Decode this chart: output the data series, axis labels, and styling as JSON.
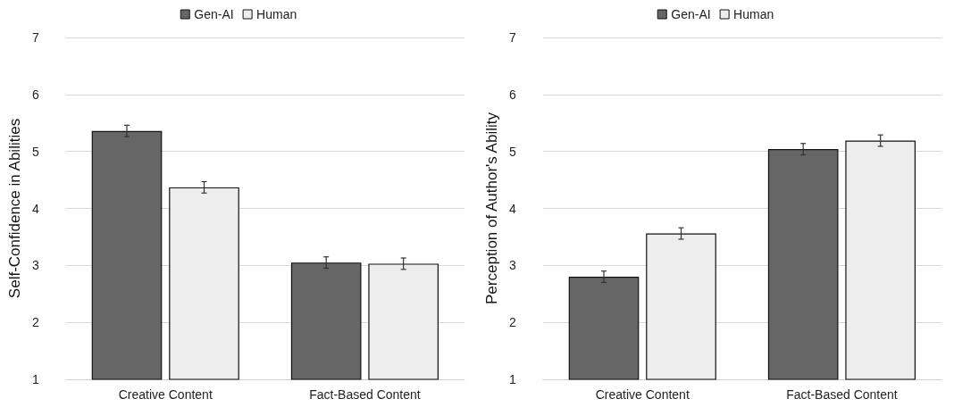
{
  "chart_data": [
    {
      "type": "bar",
      "ylabel": "Self-Confidence in Abilities",
      "categories": [
        "Creative Content",
        "Fact-Based Content"
      ],
      "series": [
        {
          "name": "Gen-AI",
          "color": "#666666",
          "values": [
            5.36,
            3.05
          ],
          "errors": [
            0.1,
            0.1
          ]
        },
        {
          "name": "Human",
          "color": "#ededed",
          "values": [
            4.37,
            3.03
          ],
          "errors": [
            0.1,
            0.1
          ]
        }
      ],
      "ylim": [
        1,
        7
      ],
      "yticks": [
        1,
        2,
        3,
        4,
        5,
        6,
        7
      ],
      "grid": "y",
      "legend": "top"
    },
    {
      "type": "bar",
      "ylabel": "Perception of Author's Ability",
      "categories": [
        "Creative Content",
        "Fact-Based Content"
      ],
      "series": [
        {
          "name": "Gen-AI",
          "color": "#666666",
          "values": [
            2.8,
            5.04
          ],
          "errors": [
            0.1,
            0.1
          ]
        },
        {
          "name": "Human",
          "color": "#ededed",
          "values": [
            3.56,
            5.19
          ],
          "errors": [
            0.1,
            0.1
          ]
        }
      ],
      "ylim": [
        1,
        7
      ],
      "yticks": [
        1,
        2,
        3,
        4,
        5,
        6,
        7
      ],
      "grid": "y",
      "legend": "top"
    }
  ]
}
